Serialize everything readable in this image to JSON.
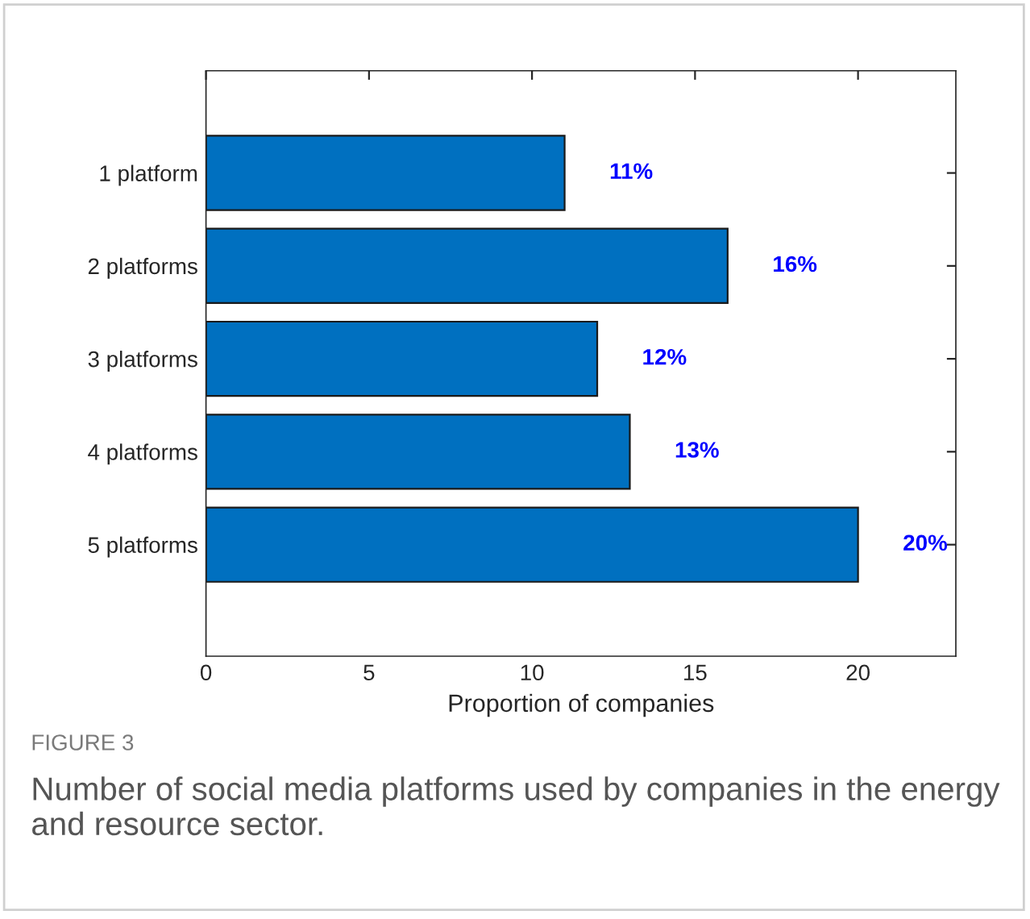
{
  "chart_data": {
    "type": "bar",
    "orientation": "horizontal",
    "categories": [
      "1 platform",
      "2 platforms",
      "3 platforms",
      "4 platforms",
      "5 platforms"
    ],
    "values": [
      11,
      16,
      12,
      13,
      20
    ],
    "value_labels": [
      "11%",
      "16%",
      "12%",
      "13%",
      "20%"
    ],
    "color": "#0070c0",
    "xlabel": "Proportion of companies",
    "xlim": [
      0,
      23
    ],
    "xticks": [
      0,
      5,
      10,
      15,
      20
    ],
    "grid": false,
    "legend": false,
    "annotations": [
      "FIGURE 3",
      "Number of social media platforms used by companies in the energy and resource sector."
    ]
  }
}
